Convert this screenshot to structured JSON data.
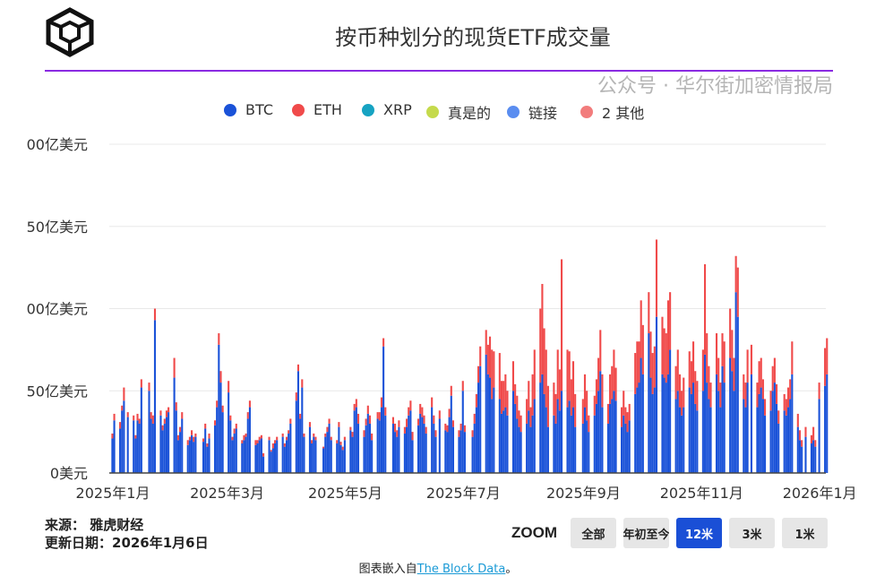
{
  "header": {
    "title": "按币种划分的现货ETF成交量",
    "logo": "The Block"
  },
  "colors": {
    "BTC": "#1a52d8",
    "ETH": "#f04a4a",
    "XRP": "#16a3c2",
    "真是的": "#c5da4c",
    "链接": "#5a8df0",
    "2 其他": "#f27c7c",
    "accent_rule": "#8a2be2"
  },
  "chart_data": {
    "type": "bar",
    "stacked": true,
    "title": "按币种划分的现货ETF成交量",
    "unit": "亿美元",
    "legend": [
      "BTC",
      "ETH",
      "XRP",
      "真是的",
      "链接",
      "2 其他"
    ],
    "legend_position": "top",
    "grid": true,
    "ylim": [
      0,
      200
    ],
    "y_ticks": [
      0,
      50,
      100,
      150,
      200
    ],
    "y_tick_labels": [
      "0美元",
      "50亿美元",
      "00亿美元",
      "50亿美元",
      "00亿美元"
    ],
    "x_tick_labels": [
      "2025年1月",
      "2025年3月",
      "2025年5月",
      "2025年7月",
      "2025年9月",
      "2025年11月",
      "2026年1月"
    ],
    "x_ticks": [
      "2025-01",
      "2025-03",
      "2025-05",
      "2025-07",
      "2025-09",
      "2025-11",
      "2026-01"
    ],
    "xlim": [
      "2025-01-01",
      "2026-01-06"
    ],
    "dates_by_month": {
      "2025-01": [
        2,
        3,
        6,
        7,
        8,
        10,
        13,
        14,
        15,
        16,
        17,
        21,
        22,
        23,
        24,
        27,
        28,
        29,
        30,
        31
      ],
      "2025-02": [
        3,
        4,
        5,
        6,
        7,
        10,
        11,
        12,
        13,
        14,
        18,
        19,
        20,
        21,
        24,
        25,
        26,
        27,
        28
      ],
      "2025-03": [
        3,
        4,
        5,
        6,
        7,
        10,
        11,
        12,
        13,
        14,
        17,
        18,
        19,
        20,
        21,
        24,
        25,
        26,
        27,
        28,
        31
      ],
      "2025-04": [
        1,
        2,
        3,
        4,
        7,
        8,
        9,
        10,
        11,
        14,
        15,
        16,
        17,
        21,
        22,
        23,
        24,
        25,
        28,
        29,
        30
      ],
      "2025-05": [
        1,
        2,
        5,
        6,
        7,
        8,
        9,
        12,
        13,
        14,
        15,
        16,
        19,
        20,
        21,
        22,
        23,
        27,
        28,
        29,
        30
      ],
      "2025-06": [
        2,
        3,
        4,
        5,
        6,
        9,
        10,
        11,
        12,
        13,
        16,
        17,
        18,
        20,
        23,
        24,
        25,
        26,
        27,
        30
      ],
      "2025-07": [
        1,
        2,
        3,
        7,
        8,
        9,
        10,
        11,
        14,
        15,
        16,
        17,
        18,
        21,
        22,
        23,
        24,
        25,
        28,
        29,
        30,
        31
      ],
      "2025-08": [
        1,
        4,
        5,
        6,
        7,
        8,
        11,
        12,
        13,
        14,
        15,
        18,
        19,
        20,
        21,
        22,
        25,
        26,
        27,
        28,
        29
      ],
      "2025-09": [
        2,
        3,
        4,
        5,
        8,
        9,
        10,
        11,
        12,
        15,
        16,
        17,
        18,
        19,
        22,
        23,
        24,
        25,
        26,
        29,
        30
      ],
      "2025-10": [
        1,
        2,
        3,
        6,
        7,
        8,
        9,
        10,
        13,
        14,
        15,
        16,
        17,
        20,
        21,
        22,
        23,
        24,
        27,
        28,
        29,
        30,
        31
      ],
      "2025-11": [
        3,
        4,
        5,
        6,
        7,
        10,
        11,
        12,
        13,
        14,
        17,
        18,
        19,
        20,
        21,
        24,
        25,
        26,
        28
      ],
      "2025-12": [
        1,
        2,
        3,
        4,
        5,
        8,
        9,
        10,
        11,
        12,
        15,
        16,
        17,
        18,
        19,
        22,
        23,
        24,
        26,
        29,
        30,
        31
      ],
      "2026-01": [
        2,
        5,
        6
      ]
    },
    "series": [
      {
        "name": "BTC",
        "values": [
          21,
          32,
          27,
          38,
          44,
          34,
          32,
          21,
          32,
          30,
          52,
          50,
          33,
          30,
          93,
          35,
          26,
          30,
          34,
          37,
          58,
          38,
          20,
          25,
          33,
          17,
          20,
          23,
          19,
          22,
          19,
          27,
          16,
          21,
          29,
          40,
          78,
          55,
          37,
          49,
          32,
          20,
          24,
          27,
          18,
          20,
          22,
          33,
          40,
          17,
          18,
          20,
          21,
          10,
          20,
          13,
          15,
          18,
          20,
          22,
          16,
          20,
          24,
          30,
          44,
          62,
          33,
          52,
          22,
          28,
          18,
          22,
          20,
          15,
          22,
          25,
          30,
          20,
          18,
          28,
          17,
          14,
          20,
          26,
          22,
          38,
          40,
          30,
          22,
          29,
          36,
          30,
          20,
          33,
          32,
          40,
          77,
          35,
          30,
          25,
          22,
          28,
          24,
          28,
          35,
          38,
          20,
          29,
          36,
          34,
          30,
          24,
          40,
          30,
          22,
          33,
          26,
          25,
          34,
          47,
          28,
          22,
          26,
          50,
          25,
          22,
          30,
          40,
          55,
          65,
          72,
          60,
          58,
          45,
          52,
          45,
          36,
          38,
          40,
          35,
          50,
          42,
          33,
          28,
          25,
          30,
          38,
          28,
          35,
          45,
          55,
          60,
          48,
          40,
          28,
          35,
          30,
          45,
          38,
          50,
          40,
          44,
          35,
          40,
          28,
          30,
          40,
          32,
          25,
          35,
          42,
          50,
          62,
          40,
          30,
          42,
          45,
          50,
          44,
          28,
          35,
          30,
          25,
          32,
          48,
          52,
          55,
          70,
          60,
          85,
          58,
          48,
          52,
          95,
          60,
          58,
          55,
          60,
          75,
          45,
          50,
          40,
          35,
          40,
          52,
          48,
          55,
          42,
          38,
          50,
          72,
          55,
          45,
          40,
          60,
          50,
          40,
          65,
          55,
          70,
          62,
          50,
          110,
          95,
          45,
          40,
          55,
          60,
          40,
          48,
          52,
          45,
          35,
          38,
          50,
          55,
          42,
          30,
          38,
          35,
          40,
          45,
          60,
          28,
          20,
          16,
          22,
          18,
          20,
          16,
          45,
          53,
          60
        ]
      },
      {
        "name": "ETH",
        "values": [
          3,
          4,
          4,
          3,
          8,
          3,
          3,
          2,
          4,
          3,
          5,
          5,
          4,
          5,
          7,
          3,
          3,
          3,
          4,
          3,
          12,
          5,
          3,
          3,
          4,
          3,
          2,
          3,
          3,
          2,
          2,
          3,
          2,
          3,
          3,
          4,
          7,
          7,
          4,
          7,
          3,
          2,
          3,
          3,
          2,
          3,
          2,
          4,
          4,
          3,
          2,
          2,
          2,
          2,
          2,
          1,
          3,
          2,
          2,
          2,
          2,
          2,
          2,
          3,
          5,
          4,
          3,
          5,
          2,
          3,
          2,
          2,
          2,
          1,
          2,
          3,
          3,
          2,
          2,
          3,
          2,
          2,
          2,
          2,
          3,
          4,
          5,
          6,
          4,
          4,
          5,
          5,
          4,
          4,
          5,
          6,
          5,
          5,
          4,
          5,
          4,
          4,
          4,
          5,
          5,
          6,
          5,
          4,
          6,
          6,
          5,
          4,
          6,
          5,
          4,
          5,
          4,
          4,
          5,
          6,
          4,
          4,
          4,
          6,
          4,
          4,
          6,
          8,
          10,
          12,
          15,
          18,
          25,
          30,
          22,
          28,
          20,
          18,
          20,
          15,
          18,
          12,
          14,
          10,
          10,
          15,
          18,
          12,
          25,
          30,
          45,
          55,
          40,
          35,
          25,
          20,
          18,
          30,
          25,
          80,
          35,
          30,
          22,
          28,
          20,
          15,
          20,
          18,
          10,
          12,
          15,
          20,
          25,
          20,
          12,
          18,
          20,
          25,
          20,
          12,
          15,
          10,
          12,
          10,
          25,
          28,
          25,
          35,
          30,
          25,
          28,
          25,
          25,
          47,
          35,
          30,
          30,
          45,
          35,
          20,
          25,
          20,
          15,
          18,
          22,
          20,
          25,
          20,
          18,
          25,
          55,
          30,
          20,
          15,
          25,
          20,
          15,
          20,
          25,
          30,
          25,
          20,
          22,
          30,
          15,
          15,
          20,
          18,
          15,
          20,
          18,
          12,
          10,
          12,
          15,
          15,
          12,
          8,
          10,
          10,
          12,
          12,
          20,
          8,
          6,
          4,
          6,
          5,
          8,
          4,
          10,
          23,
          22
        ]
      }
    ]
  },
  "footer": {
    "source": "来源： 雅虎财经",
    "updated": "更新日期：2026年1月6日",
    "zoom_label": "ZOOM",
    "zoom_buttons": [
      "全部",
      "年初至今",
      "12米",
      "3米",
      "1米"
    ],
    "zoom_selected": "12米",
    "embed_prefix": "图表嵌入自",
    "embed_link": "The Block Data",
    "embed_suffix": "。",
    "watermark": "公众号 · 华尔街加密情报局"
  }
}
